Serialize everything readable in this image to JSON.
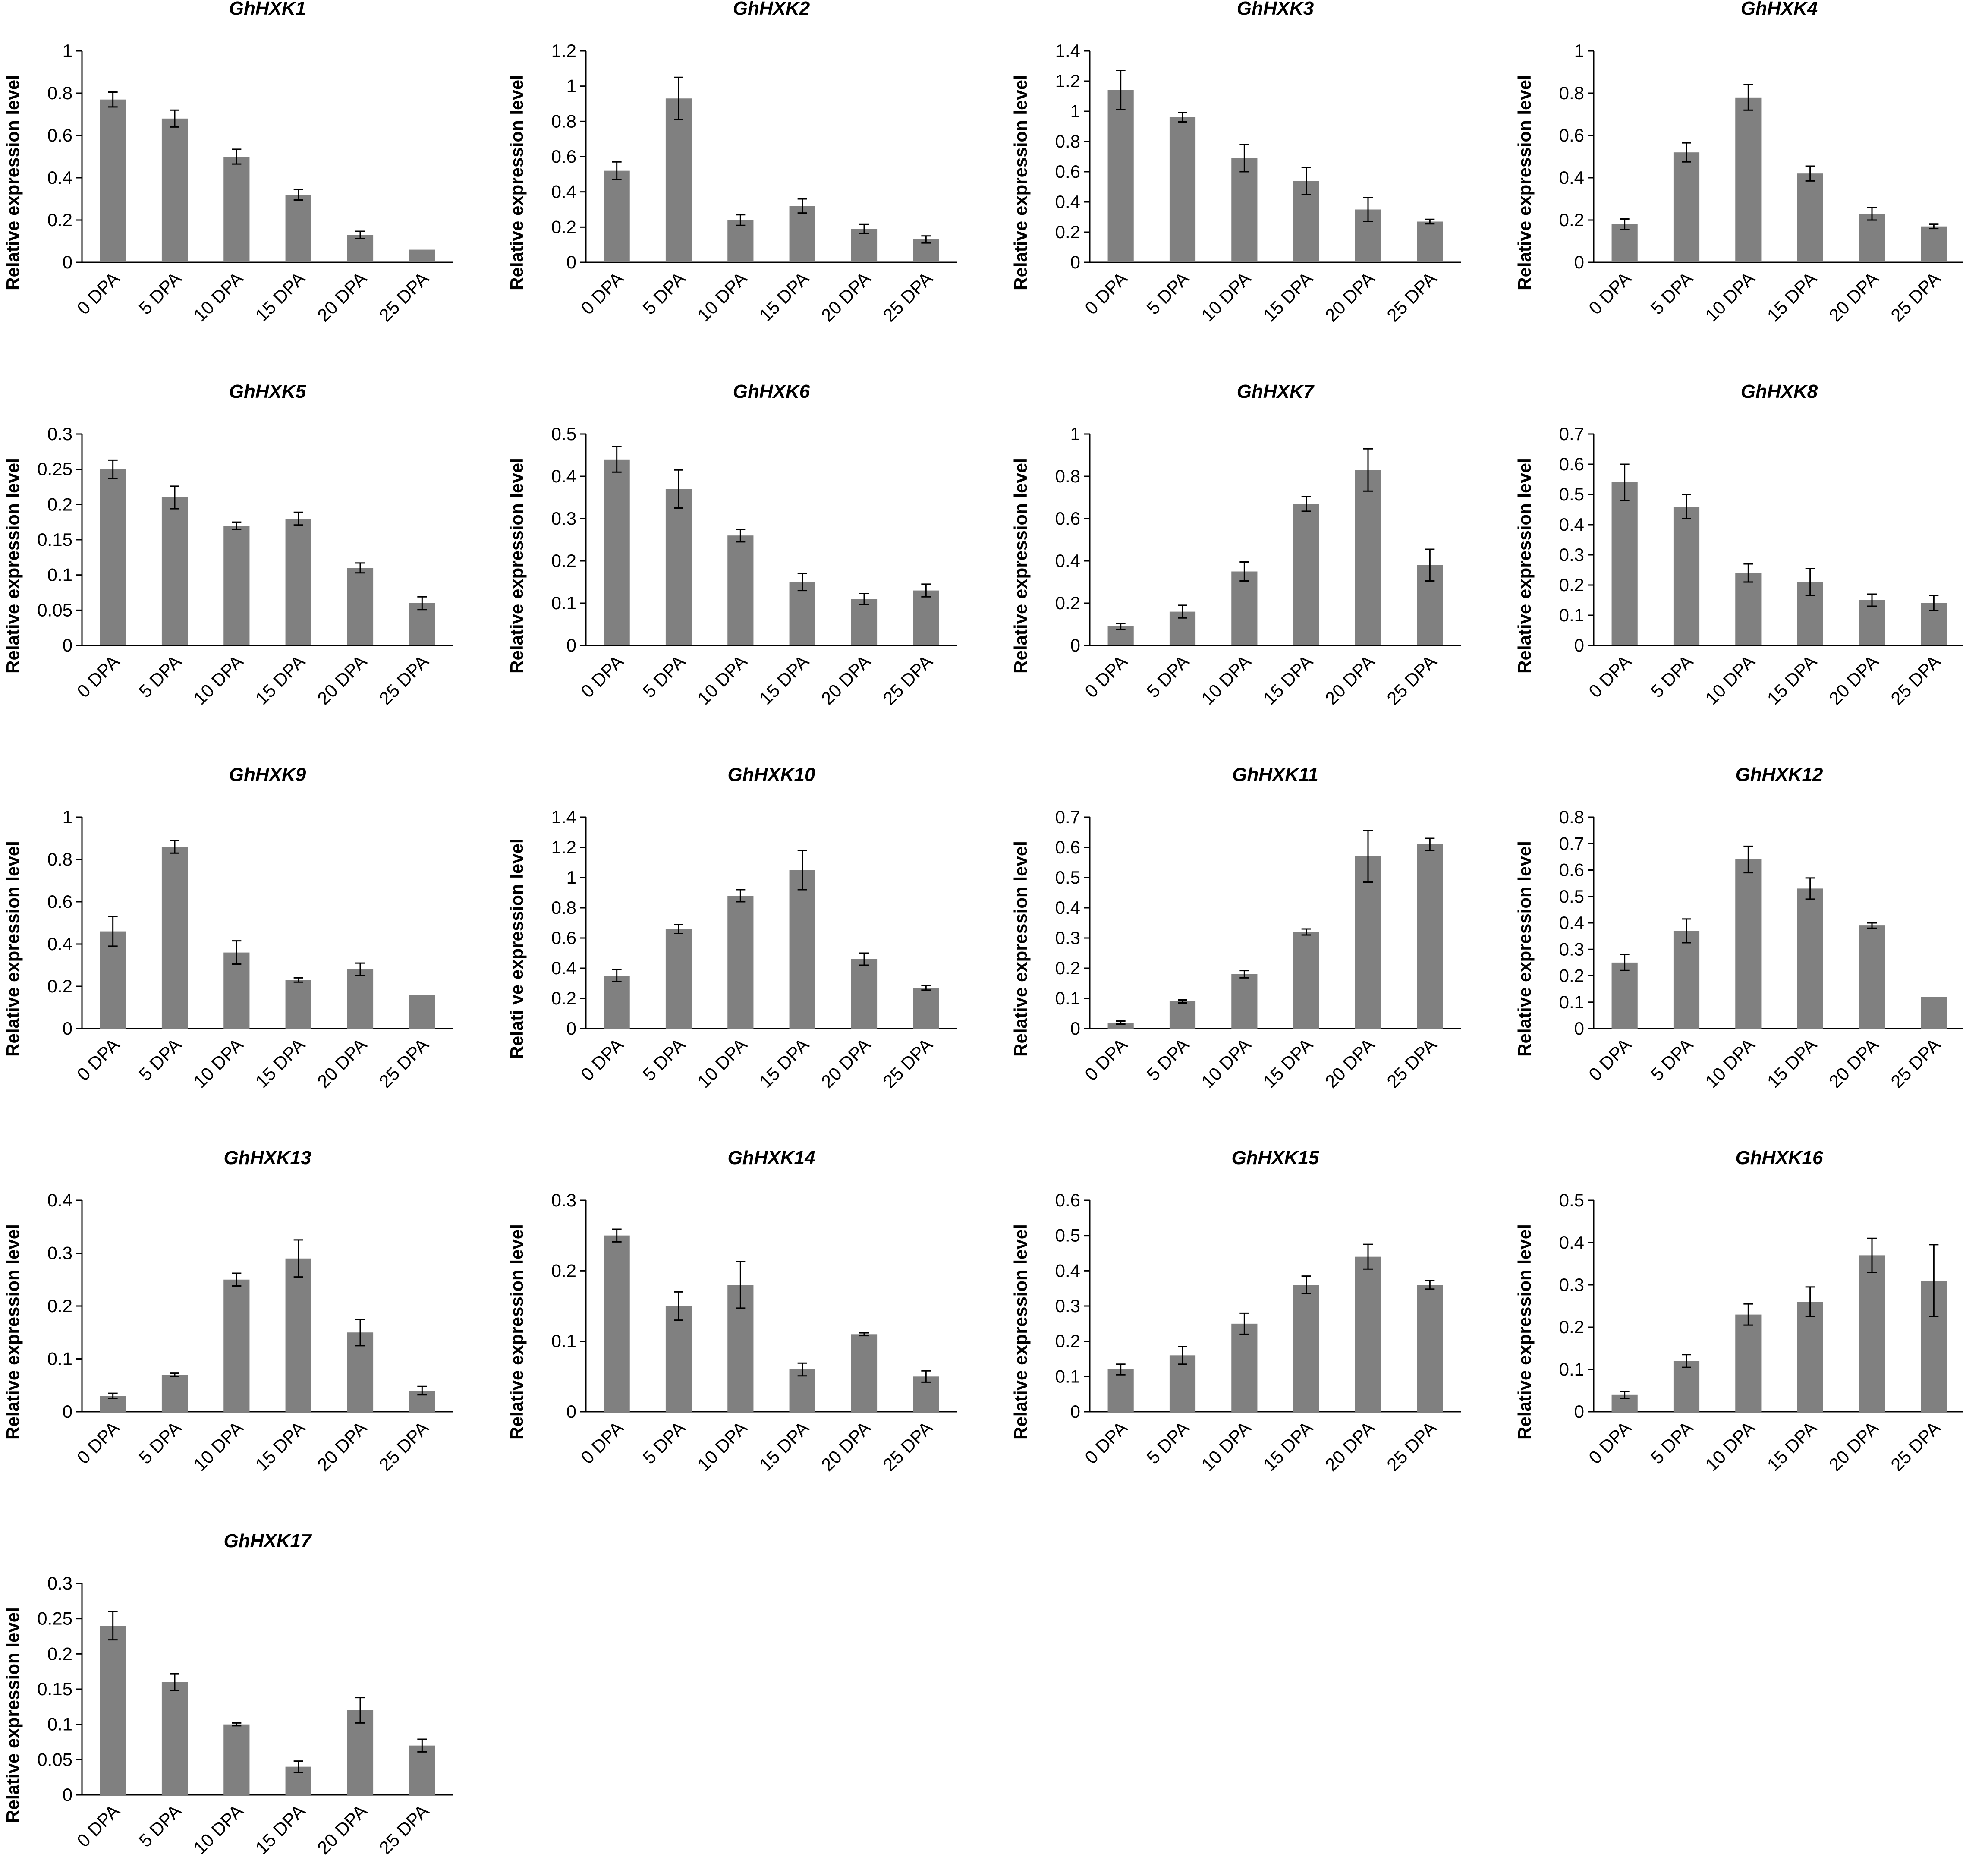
{
  "chart_data": [
    {
      "type": "bar",
      "title": "GhHXK1",
      "ylabel": "Relative expression level",
      "categories": [
        "0 DPA",
        "5 DPA",
        "10 DPA",
        "15 DPA",
        "20 DPA",
        "25 DPA"
      ],
      "ylim": [
        0,
        1
      ],
      "yticks": [
        "0",
        "0.2",
        "0.4",
        "0.6",
        "0.8",
        "1"
      ],
      "series": [
        {
          "values": [
            0.77,
            0.68,
            0.5,
            0.32,
            0.13,
            0.06
          ],
          "errors": [
            0.035,
            0.04,
            0.035,
            0.025,
            0.017,
            0
          ]
        }
      ]
    },
    {
      "type": "bar",
      "title": "GhHXK2",
      "ylabel": "Relative expression level",
      "categories": [
        "0 DPA",
        "5 DPA",
        "10 DPA",
        "15 DPA",
        "20 DPA",
        "25 DPA"
      ],
      "ylim": [
        0,
        1.2
      ],
      "yticks": [
        "0",
        "0.2",
        "0.4",
        "0.6",
        "0.8",
        "1",
        "1.2"
      ],
      "series": [
        {
          "values": [
            0.52,
            0.93,
            0.24,
            0.32,
            0.19,
            0.13
          ],
          "errors": [
            0.05,
            0.12,
            0.03,
            0.04,
            0.025,
            0.02
          ]
        }
      ]
    },
    {
      "type": "bar",
      "title": "GhHXK3",
      "ylabel": "Relative expression level",
      "categories": [
        "0 DPA",
        "5 DPA",
        "10 DPA",
        "15 DPA",
        "20 DPA",
        "25 DPA"
      ],
      "ylim": [
        0,
        1.4
      ],
      "yticks": [
        "0",
        "0.2",
        "0.4",
        "0.6",
        "0.8",
        "1",
        "1.2",
        "1.4"
      ],
      "series": [
        {
          "values": [
            1.14,
            0.96,
            0.69,
            0.54,
            0.35,
            0.27
          ],
          "errors": [
            0.13,
            0.03,
            0.09,
            0.09,
            0.08,
            0.015
          ]
        }
      ]
    },
    {
      "type": "bar",
      "title": "GhHXK4",
      "ylabel": "Relative expression level",
      "categories": [
        "0 DPA",
        "5 DPA",
        "10 DPA",
        "15 DPA",
        "20 DPA",
        "25 DPA"
      ],
      "ylim": [
        0,
        1
      ],
      "yticks": [
        "0",
        "0.2",
        "0.4",
        "0.6",
        "0.8",
        "1"
      ],
      "series": [
        {
          "values": [
            0.18,
            0.52,
            0.78,
            0.42,
            0.23,
            0.17
          ],
          "errors": [
            0.025,
            0.045,
            0.06,
            0.035,
            0.03,
            0.01
          ]
        }
      ]
    },
    {
      "type": "bar",
      "title": "GhHXK5",
      "ylabel": "Relative expression level",
      "categories": [
        "0 DPA",
        "5 DPA",
        "10 DPA",
        "15 DPA",
        "20 DPA",
        "25 DPA"
      ],
      "ylim": [
        0,
        0.3
      ],
      "yticks": [
        "0",
        "0.05",
        "0.1",
        "0.15",
        "0.2",
        "0.25",
        "0.3"
      ],
      "series": [
        {
          "values": [
            0.25,
            0.21,
            0.17,
            0.18,
            0.11,
            0.06
          ],
          "errors": [
            0.013,
            0.016,
            0.005,
            0.009,
            0.007,
            0.009
          ]
        }
      ]
    },
    {
      "type": "bar",
      "title": "GhHXK6",
      "ylabel": "Relative expression level",
      "categories": [
        "0 DPA",
        "5 DPA",
        "10 DPA",
        "15 DPA",
        "20 DPA",
        "25 DPA"
      ],
      "ylim": [
        0,
        0.5
      ],
      "yticks": [
        "0",
        "0.1",
        "0.2",
        "0.3",
        "0.4",
        "0.5"
      ],
      "series": [
        {
          "values": [
            0.44,
            0.37,
            0.26,
            0.15,
            0.11,
            0.13
          ],
          "errors": [
            0.03,
            0.045,
            0.015,
            0.02,
            0.013,
            0.015
          ]
        }
      ]
    },
    {
      "type": "bar",
      "title": "GhHXK7",
      "ylabel": "Relative expression level",
      "categories": [
        "0 DPA",
        "5 DPA",
        "10 DPA",
        "15 DPA",
        "20 DPA",
        "25 DPA"
      ],
      "ylim": [
        0,
        1
      ],
      "yticks": [
        "0",
        "0.2",
        "0.4",
        "0.6",
        "0.8",
        "1"
      ],
      "series": [
        {
          "values": [
            0.09,
            0.16,
            0.35,
            0.67,
            0.83,
            0.38
          ],
          "errors": [
            0.015,
            0.03,
            0.045,
            0.035,
            0.1,
            0.075
          ]
        }
      ]
    },
    {
      "type": "bar",
      "title": "GhHXK8",
      "ylabel": "Relative expression level",
      "categories": [
        "0 DPA",
        "5 DPA",
        "10 DPA",
        "15 DPA",
        "20 DPA",
        "25 DPA"
      ],
      "ylim": [
        0,
        0.7
      ],
      "yticks": [
        "0",
        "0.1",
        "0.2",
        "0.3",
        "0.4",
        "0.5",
        "0.6",
        "0.7"
      ],
      "series": [
        {
          "values": [
            0.54,
            0.46,
            0.24,
            0.21,
            0.15,
            0.14
          ],
          "errors": [
            0.06,
            0.04,
            0.03,
            0.045,
            0.02,
            0.025
          ]
        }
      ]
    },
    {
      "type": "bar",
      "title": "GhHXK9",
      "ylabel": "Relative expression level",
      "categories": [
        "0 DPA",
        "5 DPA",
        "10 DPA",
        "15 DPA",
        "20 DPA",
        "25 DPA"
      ],
      "ylim": [
        0,
        1
      ],
      "yticks": [
        "0",
        "0.2",
        "0.4",
        "0.6",
        "0.8",
        "1"
      ],
      "series": [
        {
          "values": [
            0.46,
            0.86,
            0.36,
            0.23,
            0.28,
            0.16
          ],
          "errors": [
            0.07,
            0.03,
            0.055,
            0.01,
            0.03,
            0
          ]
        }
      ]
    },
    {
      "type": "bar",
      "title": "GhHXK10",
      "ylabel": "Relati ve expression level",
      "categories": [
        "0 DPA",
        "5 DPA",
        "10 DPA",
        "15 DPA",
        "20 DPA",
        "25 DPA"
      ],
      "ylim": [
        0,
        1.4
      ],
      "yticks": [
        "0",
        "0.2",
        "0.4",
        "0.6",
        "0.8",
        "1",
        "1.2",
        "1.4"
      ],
      "series": [
        {
          "values": [
            0.35,
            0.66,
            0.88,
            1.05,
            0.46,
            0.27
          ],
          "errors": [
            0.04,
            0.03,
            0.04,
            0.13,
            0.04,
            0.015
          ]
        }
      ]
    },
    {
      "type": "bar",
      "title": "GhHXK11",
      "ylabel": "Relative expression level",
      "categories": [
        "0 DPA",
        "5 DPA",
        "10 DPA",
        "15 DPA",
        "20 DPA",
        "25 DPA"
      ],
      "ylim": [
        0,
        0.7
      ],
      "yticks": [
        "0",
        "0.1",
        "0.2",
        "0.3",
        "0.4",
        "0.5",
        "0.6",
        "0.7"
      ],
      "series": [
        {
          "values": [
            0.02,
            0.09,
            0.18,
            0.32,
            0.57,
            0.61
          ],
          "errors": [
            0.005,
            0.005,
            0.012,
            0.01,
            0.085,
            0.02
          ]
        }
      ]
    },
    {
      "type": "bar",
      "title": "GhHXK12",
      "ylabel": "Relative expression level",
      "categories": [
        "0 DPA",
        "5 DPA",
        "10 DPA",
        "15 DPA",
        "20 DPA",
        "25 DPA"
      ],
      "ylim": [
        0,
        0.8
      ],
      "yticks": [
        "0",
        "0.1",
        "0.2",
        "0.3",
        "0.4",
        "0.5",
        "0.6",
        "0.7",
        "0.8"
      ],
      "series": [
        {
          "values": [
            0.25,
            0.37,
            0.64,
            0.53,
            0.39,
            0.12
          ],
          "errors": [
            0.03,
            0.045,
            0.05,
            0.04,
            0.01,
            0
          ]
        }
      ]
    },
    {
      "type": "bar",
      "title": "GhHXK13",
      "ylabel": "Relative expression level",
      "categories": [
        "0 DPA",
        "5 DPA",
        "10 DPA",
        "15 DPA",
        "20 DPA",
        "25 DPA"
      ],
      "ylim": [
        0,
        0.4
      ],
      "yticks": [
        "0",
        "0.1",
        "0.2",
        "0.3",
        "0.4"
      ],
      "series": [
        {
          "values": [
            0.03,
            0.07,
            0.25,
            0.29,
            0.15,
            0.04
          ],
          "errors": [
            0.005,
            0.003,
            0.012,
            0.035,
            0.025,
            0.008
          ]
        }
      ]
    },
    {
      "type": "bar",
      "title": "GhHXK14",
      "ylabel": "Relative expression level",
      "categories": [
        "0 DPA",
        "5 DPA",
        "10 DPA",
        "15 DPA",
        "20 DPA",
        "25 DPA"
      ],
      "ylim": [
        0,
        0.3
      ],
      "yticks": [
        "0",
        "0.1",
        "0.2",
        "0.3"
      ],
      "series": [
        {
          "values": [
            0.25,
            0.15,
            0.18,
            0.06,
            0.11,
            0.05
          ],
          "errors": [
            0.009,
            0.02,
            0.033,
            0.009,
            0.002,
            0.008
          ]
        }
      ]
    },
    {
      "type": "bar",
      "title": "GhHXK15",
      "ylabel": "Relative expression level",
      "categories": [
        "0 DPA",
        "5 DPA",
        "10 DPA",
        "15 DPA",
        "20 DPA",
        "25 DPA"
      ],
      "ylim": [
        0,
        0.6
      ],
      "yticks": [
        "0",
        "0.1",
        "0.2",
        "0.3",
        "0.4",
        "0.5",
        "0.6"
      ],
      "series": [
        {
          "values": [
            0.12,
            0.16,
            0.25,
            0.36,
            0.44,
            0.36
          ],
          "errors": [
            0.015,
            0.025,
            0.03,
            0.025,
            0.035,
            0.012
          ]
        }
      ]
    },
    {
      "type": "bar",
      "title": "GhHXK16",
      "ylabel": "Relative expression level",
      "categories": [
        "0 DPA",
        "5 DPA",
        "10 DPA",
        "15 DPA",
        "20 DPA",
        "25 DPA"
      ],
      "ylim": [
        0,
        0.5
      ],
      "yticks": [
        "0",
        "0.1",
        "0.2",
        "0.3",
        "0.4",
        "0.5"
      ],
      "series": [
        {
          "values": [
            0.04,
            0.12,
            0.23,
            0.26,
            0.37,
            0.31
          ],
          "errors": [
            0.008,
            0.015,
            0.025,
            0.035,
            0.04,
            0.085
          ]
        }
      ]
    },
    {
      "type": "bar",
      "title": "GhHXK17",
      "ylabel": "Relative expression level",
      "categories": [
        "0 DPA",
        "5 DPA",
        "10 DPA",
        "15 DPA",
        "20 DPA",
        "25 DPA"
      ],
      "ylim": [
        0,
        0.3
      ],
      "yticks": [
        "0",
        "0.05",
        "0.1",
        "0.15",
        "0.2",
        "0.25",
        "0.3"
      ],
      "series": [
        {
          "values": [
            0.24,
            0.16,
            0.1,
            0.04,
            0.12,
            0.07
          ],
          "errors": [
            0.02,
            0.012,
            0.002,
            0.008,
            0.018,
            0.009
          ]
        }
      ]
    }
  ],
  "colors": {
    "bar": "#808080",
    "axis": "#000000",
    "text": "#000000"
  }
}
